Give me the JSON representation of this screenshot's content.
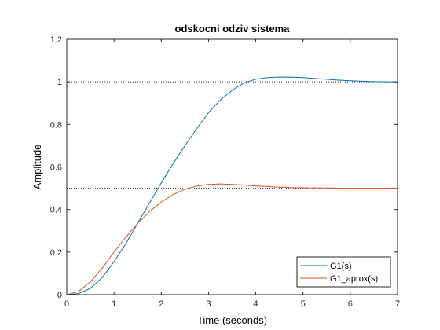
{
  "chart_data": {
    "type": "line",
    "title": "odskocni odziv sistema",
    "xlabel": "Time (seconds)",
    "ylabel": "Amplitude",
    "xlim": [
      0,
      7
    ],
    "ylim": [
      0,
      1.2
    ],
    "xticks": [
      "0",
      "1",
      "2",
      "3",
      "4",
      "5",
      "6",
      "7"
    ],
    "yticks": [
      "0",
      "0.2",
      "0.4",
      "0.6",
      "0.8",
      "1",
      "1.2"
    ],
    "grid": false,
    "legend_position": "bottom-right",
    "reference_lines": [
      1.0,
      0.5
    ],
    "series": [
      {
        "name": "G1(s)",
        "color": "#0072BD",
        "x": [
          0,
          0.25,
          0.5,
          0.75,
          1.0,
          1.25,
          1.5,
          1.75,
          2.0,
          2.25,
          2.5,
          2.75,
          3.0,
          3.25,
          3.5,
          3.75,
          4.0,
          4.25,
          4.5,
          4.75,
          5.0,
          5.25,
          5.5,
          5.75,
          6.0,
          6.25,
          6.5,
          6.75,
          7.0
        ],
        "y": [
          0,
          0.005,
          0.03,
          0.08,
          0.155,
          0.24,
          0.335,
          0.43,
          0.525,
          0.615,
          0.7,
          0.78,
          0.855,
          0.915,
          0.96,
          0.995,
          1.012,
          1.02,
          1.023,
          1.022,
          1.02,
          1.016,
          1.012,
          1.008,
          1.005,
          1.003,
          1.001,
          1.0,
          1.0
        ]
      },
      {
        "name": "G1_aprox(s)",
        "color": "#D95319",
        "x": [
          0,
          0.25,
          0.5,
          0.75,
          1.0,
          1.25,
          1.5,
          1.75,
          2.0,
          2.25,
          2.5,
          2.75,
          3.0,
          3.25,
          3.5,
          3.75,
          4.0,
          4.25,
          4.5,
          4.75,
          5.0,
          5.5,
          6.0,
          6.5,
          7.0
        ],
        "y": [
          0,
          0.015,
          0.06,
          0.125,
          0.2,
          0.27,
          0.335,
          0.39,
          0.435,
          0.47,
          0.495,
          0.51,
          0.518,
          0.52,
          0.518,
          0.515,
          0.511,
          0.508,
          0.505,
          0.503,
          0.502,
          0.501,
          0.5,
          0.5,
          0.5
        ]
      }
    ]
  }
}
